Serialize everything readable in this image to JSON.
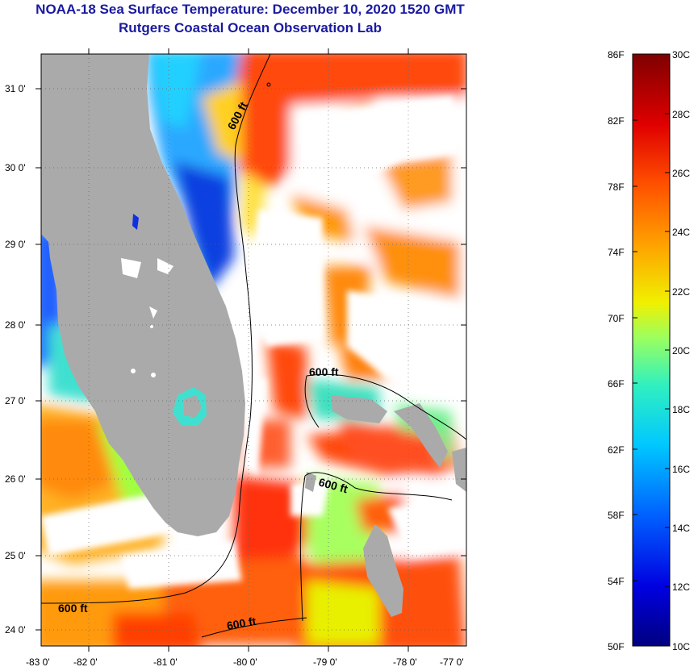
{
  "title": {
    "line1": "NOAA-18 Sea Surface Temperature:  December 10, 2020 1520 GMT",
    "line2": "Rutgers Coastal Ocean Observation Lab"
  },
  "map": {
    "lat_labels": [
      "31 0'",
      "30 0'",
      "29 0'",
      "28 0'",
      "27 0'",
      "26 0'",
      "25 0'",
      "24 0'"
    ],
    "lon_labels": [
      "-83 0'",
      "-82 0'",
      "-81 0'",
      "-80 0'",
      "-79 0'",
      "-78 0'",
      "-77 0'"
    ],
    "contour_labels": [
      "600 ft",
      "600 ft",
      "600 ft",
      "600 ft",
      "600 ft"
    ],
    "colors": {
      "land": "#aaaaaa",
      "cloud": "#ffffff",
      "contour": "#000000"
    }
  },
  "colorbar": {
    "fahrenheit": [
      "86F",
      "82F",
      "78F",
      "74F",
      "70F",
      "66F",
      "62F",
      "58F",
      "54F",
      "50F"
    ],
    "celsius": [
      "30C",
      "28C",
      "26C",
      "24C",
      "22C",
      "20C",
      "18C",
      "16C",
      "14C",
      "12C",
      "10C"
    ]
  }
}
